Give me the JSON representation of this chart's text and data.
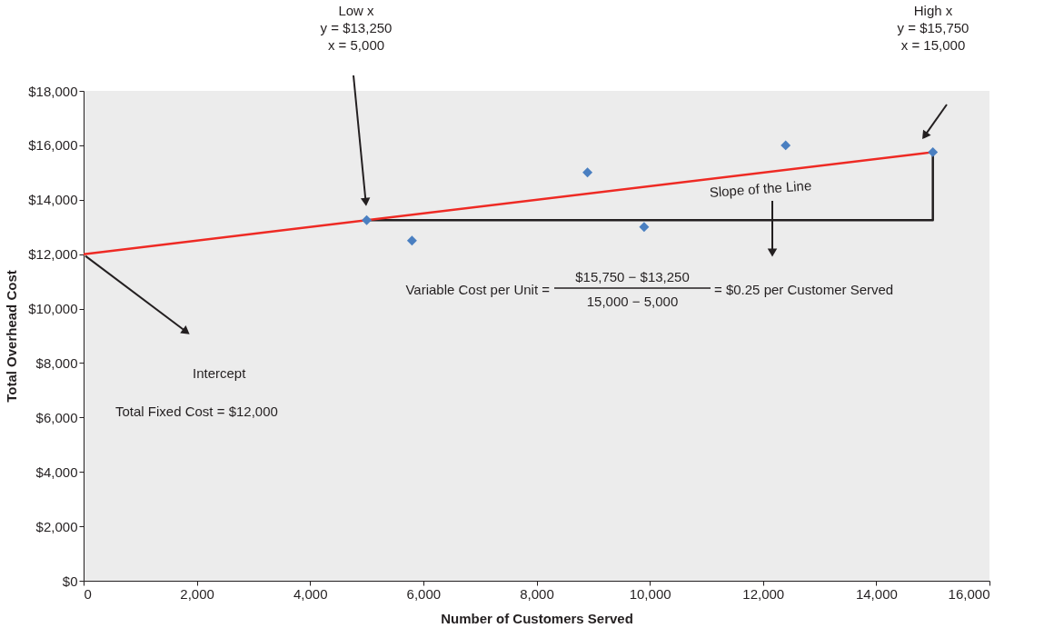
{
  "chart_data": {
    "type": "scatter",
    "xlabel": "Number of Customers Served",
    "ylabel": "Total Overhead Cost",
    "xlim": [
      0,
      16000
    ],
    "xticks": [
      0,
      {
        "value": 2000,
        "label": "2,000"
      },
      {
        "value": 4000,
        "label": "4,000"
      },
      {
        "value": 6000,
        "label": "6,000"
      },
      {
        "value": 8000,
        "label": "8,000"
      },
      {
        "value": 10000,
        "label": "10,000"
      },
      {
        "value": 12000,
        "label": "12,000"
      },
      {
        "value": 14000,
        "label": "14,000"
      },
      {
        "value": 16000,
        "label": "16,000"
      }
    ],
    "ylim": [
      0,
      18000
    ],
    "yticks": [
      {
        "value": 0,
        "label": "$0"
      },
      {
        "value": 2000,
        "label": "$2,000"
      },
      {
        "value": 4000,
        "label": "$4,000"
      },
      {
        "value": 6000,
        "label": "$6,000"
      },
      {
        "value": 8000,
        "label": "$8,000"
      },
      {
        "value": 10000,
        "label": "$10,000"
      },
      {
        "value": 12000,
        "label": "$12,000"
      },
      {
        "value": 14000,
        "label": "$14,000"
      },
      {
        "value": 16000,
        "label": "$16,000"
      },
      {
        "value": 18000,
        "label": "$18,000"
      }
    ],
    "grid": false,
    "series": [
      {
        "type": "line",
        "color": "#231f20",
        "x": [
          5000,
          15000,
          15000
        ],
        "values": [
          13250,
          13250,
          15750
        ],
        "marker": "none",
        "line_style": "solid"
      },
      {
        "type": "line",
        "color": "#ee2a24",
        "x": [
          0,
          15000
        ],
        "values": [
          12000,
          15750
        ],
        "marker": "none",
        "line_style": "solid"
      },
      {
        "color": "#4a7fc1",
        "x": [
          5000,
          5800,
          8900,
          9900,
          12400,
          15000
        ],
        "values": [
          13250,
          12500,
          15000,
          13000,
          16000,
          15750
        ],
        "marker": "diamond"
      }
    ],
    "annotations": [
      "Low x\ny = $13,250\nx = 5,000",
      "High x\ny = $15,750\nx = 15,000",
      "Intercept",
      "Total Fixed Cost = $12,000",
      "Slope of the Line",
      "Variable Cost per Unit =",
      "$15,750 − $13,250",
      "15,000 − 5,000",
      "= $0.25 per Customer Served"
    ]
  }
}
